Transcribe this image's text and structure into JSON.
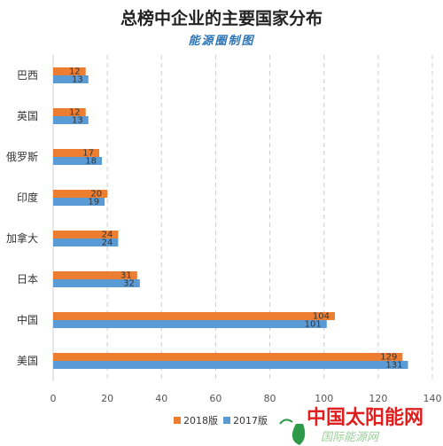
{
  "chart_data": {
    "type": "bar",
    "orientation": "horizontal",
    "title": "总榜中企业的主要国家分布",
    "subtitle": "能源圈制图",
    "categories": [
      "巴西",
      "英国",
      "俄罗斯",
      "印度",
      "加拿大",
      "日本",
      "中国",
      "美国"
    ],
    "series": [
      {
        "name": "2018版",
        "color": "#ed7d31",
        "values": [
          12,
          12,
          17,
          20,
          24,
          31,
          104,
          129
        ]
      },
      {
        "name": "2017版",
        "color": "#5b9bd5",
        "values": [
          13,
          13,
          18,
          19,
          24,
          32,
          101,
          131
        ]
      }
    ],
    "xlim": [
      0,
      140
    ],
    "xticks": [
      0,
      20,
      40,
      60,
      80,
      100,
      120,
      140
    ],
    "grid": "vertical-dashed",
    "legend": "bottom",
    "xlabel": "",
    "ylabel": ""
  },
  "watermark": {
    "main": "中国太阳能网",
    "sub": "国际能源网",
    "colors": {
      "main": "#e01e1e",
      "sub": "#9ccf9c",
      "logo": "#2d9a4a"
    }
  }
}
